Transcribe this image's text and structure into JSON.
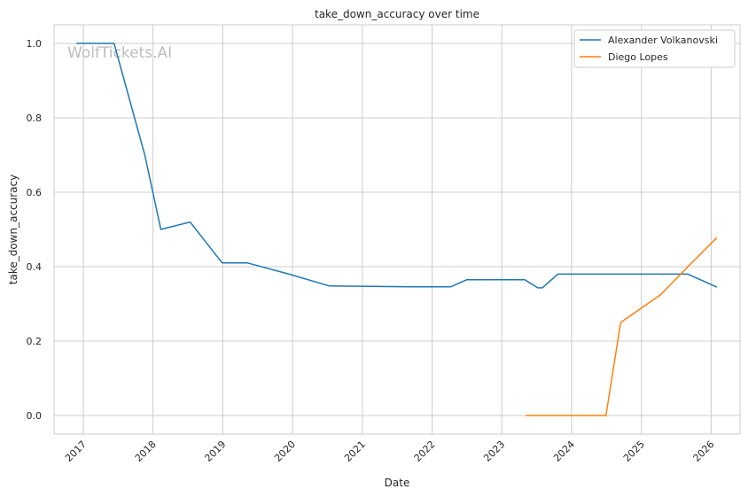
{
  "chart_data": {
    "type": "line",
    "title": "take_down_accuracy over time",
    "xlabel": "Date",
    "ylabel": "take_down_accuracy",
    "watermark": "WolfTickets.AI",
    "xlim": [
      "2016-08-01",
      "2026-06-01"
    ],
    "ylim": [
      -0.05,
      1.05
    ],
    "x_ticks": [
      "2017",
      "2018",
      "2019",
      "2020",
      "2021",
      "2022",
      "2023",
      "2024",
      "2025",
      "2026"
    ],
    "y_ticks": [
      "0.0",
      "0.2",
      "0.4",
      "0.6",
      "0.8",
      "1.0"
    ],
    "grid": true,
    "legend_position": "top-right",
    "colors": {
      "Alexander Volkanovski": "#1f77b4",
      "Diego Lopes": "#ff7f0e"
    },
    "series": [
      {
        "name": "Alexander Volkanovski",
        "x": [
          "2016-11-26",
          "2017-06-11",
          "2017-11-19",
          "2018-02-11",
          "2018-07-14",
          "2018-12-29",
          "2019-05-11",
          "2019-12-14",
          "2020-07-12",
          "2021-09-25",
          "2022-04-09",
          "2022-07-02",
          "2023-05-01",
          "2023-07-08",
          "2023-08-01",
          "2023-10-21",
          "2025-04-12",
          "2025-09-01",
          "2026-01-31"
        ],
        "y": [
          1.0,
          1.0,
          0.7,
          0.5,
          0.52,
          0.41,
          0.41,
          0.38,
          0.348,
          0.346,
          0.346,
          0.365,
          0.365,
          0.343,
          0.343,
          0.38,
          0.38,
          0.38,
          0.345
        ]
      },
      {
        "name": "Diego Lopes",
        "x": [
          "2023-05-06",
          "2024-06-29",
          "2024-09-14",
          "2025-04-12",
          "2025-09-01",
          "2026-01-31"
        ],
        "y": [
          0.0,
          0.0,
          0.25,
          0.325,
          0.4,
          0.478
        ]
      }
    ]
  }
}
